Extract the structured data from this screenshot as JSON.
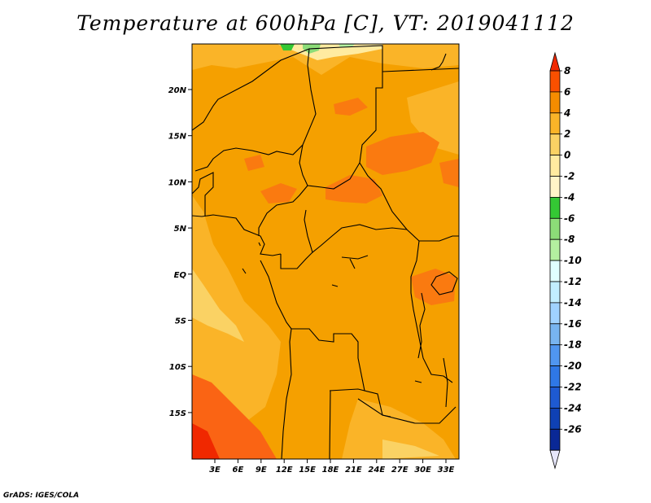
{
  "title": "Temperature at 600hPa [C], VT: 2019041112",
  "footer": "GrADS: IGES/COLA",
  "map": {
    "lon_labels": [
      "3E",
      "6E",
      "9E",
      "12E",
      "15E",
      "18E",
      "21E",
      "24E",
      "27E",
      "30E",
      "33E"
    ],
    "lat_labels": [
      "20N",
      "15N",
      "10N",
      "5N",
      "EQ",
      "5S",
      "10S",
      "15S"
    ]
  },
  "colorbar": {
    "labels": [
      "8",
      "6",
      "4",
      "2",
      "0",
      "-2",
      "-4",
      "-6",
      "-8",
      "-10",
      "-12",
      "-14",
      "-16",
      "-18",
      "-20",
      "-22",
      "-24",
      "-26"
    ],
    "colors": [
      "#f02800",
      "#fa5000",
      "#f58c00",
      "#fab428",
      "#fad264",
      "#ffeba0",
      "#fff5c8",
      "#34c834",
      "#8cdc78",
      "#b4f0a0",
      "#e0ffff",
      "#c2eeff",
      "#a0d2ff",
      "#78b4f0",
      "#5096f0",
      "#2f78e6",
      "#1e5ad2",
      "#0f41b4",
      "#0a2896",
      "#020a5a"
    ]
  }
}
